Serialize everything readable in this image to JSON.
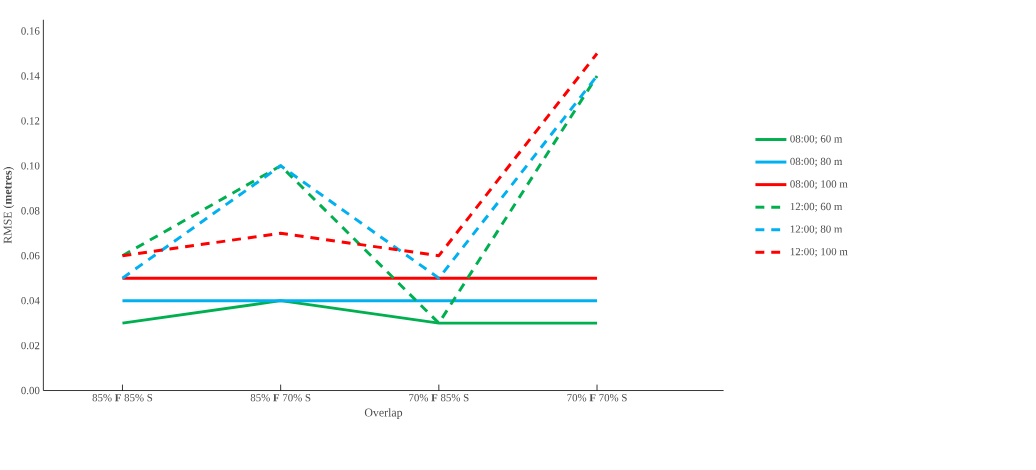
{
  "chart_data": {
    "type": "line",
    "xlabel": "Overlap",
    "ylabel": "RMSE (**metres**)",
    "categories": [
      "85% **F** 85% S",
      "85% **F** 70% S",
      "70% **F** 85% S",
      "70% **F** 70% S"
    ],
    "series": [
      {
        "name": "08:00; 60 m",
        "color": "#00b050",
        "line_style": "solid",
        "values": [
          0.03,
          0.04,
          0.03,
          0.03
        ]
      },
      {
        "name": "08:00; 80 m",
        "color": "#00b0f0",
        "line_style": "solid",
        "values": [
          0.04,
          0.04,
          0.04,
          0.04
        ]
      },
      {
        "name": "08:00; 100 m",
        "color": "#ff0000",
        "line_style": "solid",
        "values": [
          0.05,
          0.05,
          0.05,
          0.05
        ]
      },
      {
        "name": "12:00; 60 m",
        "color": "#00b050",
        "line_style": "dashed",
        "values": [
          0.06,
          0.1,
          0.03,
          0.14
        ]
      },
      {
        "name": "12:00; 80 m",
        "color": "#00b0f0",
        "line_style": "dashed",
        "values": [
          0.05,
          0.1,
          0.05,
          0.14
        ]
      },
      {
        "name": "12:00; 100 m",
        "color": "#ff0000",
        "line_style": "dashed",
        "values": [
          0.06,
          0.07,
          0.06,
          0.15
        ]
      }
    ],
    "ylim": [
      0,
      0.165
    ],
    "yticks": [
      {
        "value": 0,
        "label": "0.00"
      },
      {
        "value": 0.02,
        "label": "0.02"
      },
      {
        "value": 0.04,
        "label": "0.04"
      },
      {
        "value": 0.06,
        "label": "0.06"
      },
      {
        "value": 0.08,
        "label": "0.08"
      },
      {
        "value": 0.1,
        "label": "0.10"
      },
      {
        "value": 0.12,
        "label": "0.12"
      },
      {
        "value": 0.14,
        "label": "0.14"
      },
      {
        "value": 0.16,
        "label": "0.16"
      }
    ],
    "grid": false,
    "legend": "right",
    "marker": "none"
  }
}
